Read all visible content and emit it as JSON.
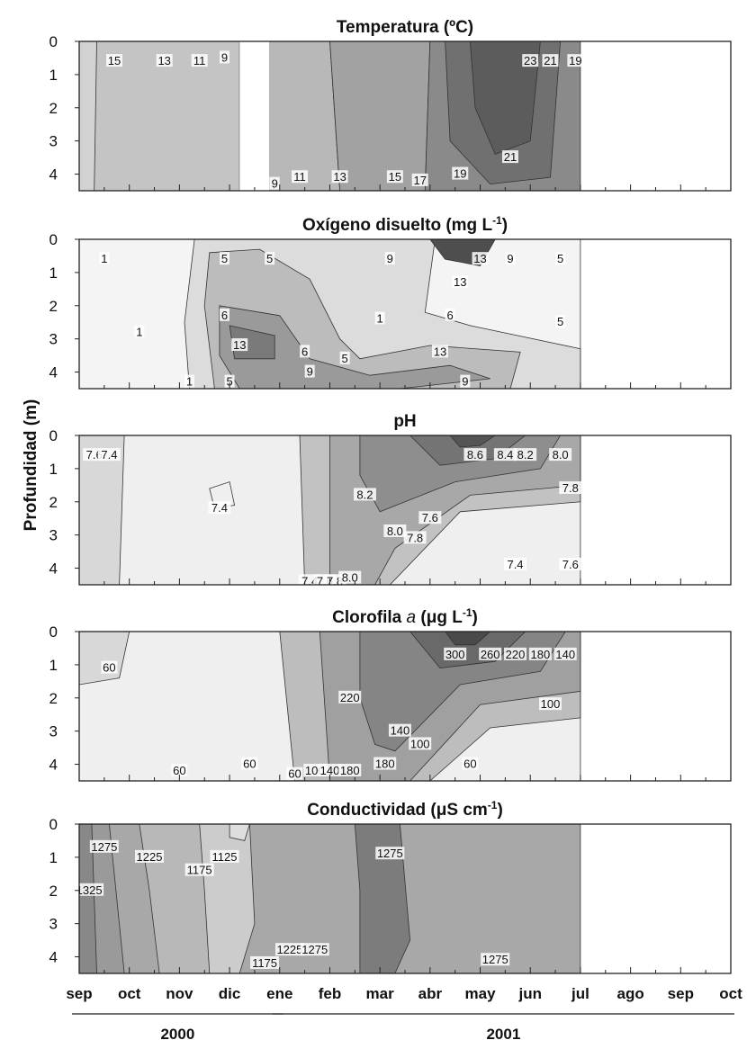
{
  "chart_data": {
    "type": "heatmap",
    "ylabel": "Profundidad (m)",
    "months": [
      "sep",
      "oct",
      "nov",
      "dic",
      "ene",
      "feb",
      "mar",
      "abr",
      "may",
      "jun",
      "jul",
      "ago",
      "sep",
      "oct"
    ],
    "years": [
      {
        "label": "2000",
        "from": 0,
        "to": 4
      },
      {
        "label": "2001",
        "from": 4,
        "to": 13
      }
    ],
    "depth_ticks": [
      0,
      1,
      2,
      3,
      4
    ],
    "depth_range": [
      0,
      4.5
    ],
    "panels": [
      {
        "title": "Temperatura (ºC)",
        "colors": [
          "#c4c4c4",
          "#d2d2d2",
          "#b8b8b8",
          "#a2a2a2",
          "#8a8a8a",
          "#707070",
          "#5c5c5c"
        ],
        "gap": {
          "from": 3.2,
          "to": 3.8
        },
        "levels": [
          {
            "label": "15",
            "x": 0.7,
            "y": 0.6
          },
          {
            "label": "13",
            "x": 1.7,
            "y": 0.6
          },
          {
            "label": "11",
            "x": 2.4,
            "y": 0.6
          },
          {
            "label": "9",
            "x": 2.9,
            "y": 0.5
          },
          {
            "label": "9",
            "x": 3.9,
            "y": 4.3
          },
          {
            "label": "11",
            "x": 4.4,
            "y": 4.1
          },
          {
            "label": "13",
            "x": 5.2,
            "y": 4.1
          },
          {
            "label": "15",
            "x": 6.3,
            "y": 4.1
          },
          {
            "label": "17",
            "x": 6.8,
            "y": 4.2
          },
          {
            "label": "19",
            "x": 7.6,
            "y": 4.0
          },
          {
            "label": "21",
            "x": 8.6,
            "y": 3.5
          },
          {
            "label": "23",
            "x": 9.0,
            "y": 0.6
          },
          {
            "label": "21",
            "x": 9.4,
            "y": 0.6
          },
          {
            "label": "19",
            "x": 9.9,
            "y": 0.6
          }
        ]
      },
      {
        "title": "Oxígeno disuelto (mg L-1)",
        "colors": [
          "#f4f4f4",
          "#dcdcdc",
          "#bcbcbc",
          "#9a9a9a",
          "#7a7a7a",
          "#4e4e4e"
        ],
        "levels": [
          {
            "label": "1",
            "x": 0.5,
            "y": 0.6
          },
          {
            "label": "1",
            "x": 1.2,
            "y": 2.8
          },
          {
            "label": "1",
            "x": 2.2,
            "y": 4.3
          },
          {
            "label": "5",
            "x": 2.9,
            "y": 0.6
          },
          {
            "label": "5",
            "x": 3.8,
            "y": 0.6
          },
          {
            "label": "6",
            "x": 2.9,
            "y": 2.3
          },
          {
            "label": "13",
            "x": 3.2,
            "y": 3.2
          },
          {
            "label": "6",
            "x": 4.5,
            "y": 3.4
          },
          {
            "label": "5",
            "x": 3.0,
            "y": 4.3
          },
          {
            "label": "9",
            "x": 4.6,
            "y": 4.0
          },
          {
            "label": "5",
            "x": 5.3,
            "y": 3.6
          },
          {
            "label": "1",
            "x": 6.0,
            "y": 2.4
          },
          {
            "label": "9",
            "x": 6.2,
            "y": 0.6
          },
          {
            "label": "13",
            "x": 7.6,
            "y": 1.3
          },
          {
            "label": "6",
            "x": 7.4,
            "y": 2.3
          },
          {
            "label": "13",
            "x": 7.2,
            "y": 3.4
          },
          {
            "label": "9",
            "x": 7.7,
            "y": 4.3
          },
          {
            "label": "13",
            "x": 8.0,
            "y": 0.6
          },
          {
            "label": "9",
            "x": 8.6,
            "y": 0.6
          },
          {
            "label": "5",
            "x": 9.6,
            "y": 0.6
          },
          {
            "label": "5",
            "x": 9.6,
            "y": 2.5
          }
        ]
      },
      {
        "title": "pH",
        "colors": [
          "#efefef",
          "#d8d8d8",
          "#c2c2c2",
          "#a8a8a8",
          "#8e8e8e",
          "#747474",
          "#555555"
        ],
        "levels": [
          {
            "label": "7.6",
            "x": 0.3,
            "y": 0.6
          },
          {
            "label": "7.4",
            "x": 0.6,
            "y": 0.6
          },
          {
            "label": "7.4",
            "x": 2.8,
            "y": 2.2
          },
          {
            "label": "7.4",
            "x": 4.6,
            "y": 4.4
          },
          {
            "label": "7.6",
            "x": 4.9,
            "y": 4.4
          },
          {
            "label": "7.8",
            "x": 5.1,
            "y": 4.4
          },
          {
            "label": "8.0",
            "x": 5.4,
            "y": 4.3
          },
          {
            "label": "8.2",
            "x": 5.7,
            "y": 1.8
          },
          {
            "label": "8.0",
            "x": 6.3,
            "y": 2.9
          },
          {
            "label": "7.8",
            "x": 6.7,
            "y": 3.1
          },
          {
            "label": "7.6",
            "x": 7.0,
            "y": 2.5
          },
          {
            "label": "8.6",
            "x": 7.9,
            "y": 0.6
          },
          {
            "label": "8.4",
            "x": 8.5,
            "y": 0.6
          },
          {
            "label": "8.2",
            "x": 8.9,
            "y": 0.6
          },
          {
            "label": "8.0",
            "x": 9.6,
            "y": 0.6
          },
          {
            "label": "7.8",
            "x": 9.8,
            "y": 1.6
          },
          {
            "label": "7.4",
            "x": 8.7,
            "y": 3.9
          },
          {
            "label": "7.6",
            "x": 9.8,
            "y": 3.9
          }
        ]
      },
      {
        "title": "Clorofila a (μg L-1)",
        "colors": [
          "#efefef",
          "#d8d8d8",
          "#bdbdbd",
          "#a0a0a0",
          "#858585",
          "#696969",
          "#4a4a4a"
        ],
        "levels": [
          {
            "label": "60",
            "x": 0.6,
            "y": 1.1
          },
          {
            "label": "60",
            "x": 2.0,
            "y": 4.2
          },
          {
            "label": "60",
            "x": 3.4,
            "y": 4.0
          },
          {
            "label": "60",
            "x": 4.3,
            "y": 4.3
          },
          {
            "label": "100",
            "x": 4.7,
            "y": 4.2
          },
          {
            "label": "140",
            "x": 5.0,
            "y": 4.2
          },
          {
            "label": "180",
            "x": 5.4,
            "y": 4.2
          },
          {
            "label": "220",
            "x": 5.4,
            "y": 2.0
          },
          {
            "label": "180",
            "x": 6.1,
            "y": 4.0
          },
          {
            "label": "140",
            "x": 6.4,
            "y": 3.0
          },
          {
            "label": "100",
            "x": 6.8,
            "y": 3.4
          },
          {
            "label": "300",
            "x": 7.5,
            "y": 0.7
          },
          {
            "label": "260",
            "x": 8.2,
            "y": 0.7
          },
          {
            "label": "220",
            "x": 8.7,
            "y": 0.7
          },
          {
            "label": "180",
            "x": 9.2,
            "y": 0.7
          },
          {
            "label": "140",
            "x": 9.7,
            "y": 0.7
          },
          {
            "label": "100",
            "x": 9.4,
            "y": 2.2
          },
          {
            "label": "60",
            "x": 7.8,
            "y": 4.0
          }
        ]
      },
      {
        "title": "Conductividad (μS cm-1)",
        "colors": [
          "#a8a8a8",
          "#9a9a9a",
          "#888888",
          "#b8b8b8",
          "#cccccc",
          "#dedede",
          "#7c7c7c"
        ],
        "levels": [
          {
            "label": "1325",
            "x": 0.2,
            "y": 2.0
          },
          {
            "label": "1275",
            "x": 0.5,
            "y": 0.7
          },
          {
            "label": "1225",
            "x": 1.4,
            "y": 1.0
          },
          {
            "label": "1175",
            "x": 2.4,
            "y": 1.4
          },
          {
            "label": "1125",
            "x": 2.9,
            "y": 1.0
          },
          {
            "label": "1175",
            "x": 3.7,
            "y": 4.2
          },
          {
            "label": "1225",
            "x": 4.2,
            "y": 3.8
          },
          {
            "label": "1275",
            "x": 4.7,
            "y": 3.8
          },
          {
            "label": "1275",
            "x": 6.2,
            "y": 0.9
          },
          {
            "label": "1275",
            "x": 8.3,
            "y": 4.1
          }
        ]
      }
    ]
  }
}
